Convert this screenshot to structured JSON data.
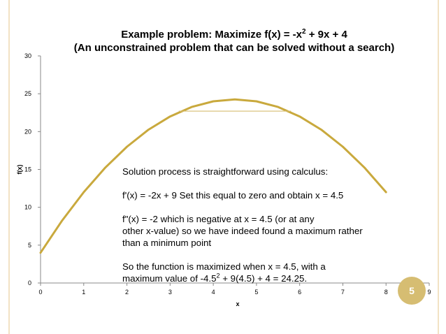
{
  "title": {
    "line1_prefix": "Example problem:  Maximize   f(x) = -x",
    "line1_sup": "2",
    "line1_suffix": " + 9x + 4",
    "line2": "(An unconstrained problem that can be solved without a search)"
  },
  "annotation": {
    "line1": "Solution process is straightforward using calculus:",
    "line2": "f'(x) = -2x + 9   Set this equal to zero and obtain x = 4.5",
    "line3": "f\"(x) = -2  which is negative at x = 4.5 (or at any",
    "line4": "other x-value) so we have indeed found a maximum rather",
    "line5": "than a minimum point",
    "line6": "So the function is maximized when x = 4.5, with a",
    "line7_prefix": "maximum value of -4.5",
    "line7_sup": "2",
    "line7_suffix": " + 9(4.5) + 4 = 24.25."
  },
  "slide_number": "5",
  "colors": {
    "curve": "#c9a93d",
    "tangent": "#d6bd72",
    "axis": "#888888",
    "frame": "#f2e2c4",
    "badge": "#d6bd72"
  },
  "chart_data": {
    "type": "line",
    "function": "f(x) = -x^2 + 9x + 4",
    "xlabel": "x",
    "ylabel": "f(x)",
    "xlim": [
      0,
      9
    ],
    "ylim": [
      0,
      30
    ],
    "x_ticks": [
      "0",
      "1",
      "2",
      "3",
      "4",
      "5",
      "6",
      "7",
      "8",
      "9"
    ],
    "y_ticks": [
      "0",
      "5",
      "10",
      "15",
      "20",
      "25",
      "30"
    ],
    "grid": false,
    "series": [
      {
        "x": [
          0,
          0.5,
          1,
          1.5,
          2,
          2.5,
          3,
          3.5,
          4,
          4.5,
          5,
          5.5,
          6,
          6.5,
          7,
          7.5,
          8
        ],
        "y": [
          4,
          8.25,
          12,
          15.25,
          18,
          20.25,
          22,
          23.25,
          24,
          24.25,
          24,
          23.25,
          22,
          20.25,
          18,
          15.25,
          12
        ]
      }
    ],
    "tangent_line": {
      "x": [
        3.2,
        5.8
      ],
      "y": [
        22.7,
        22.7
      ]
    }
  }
}
